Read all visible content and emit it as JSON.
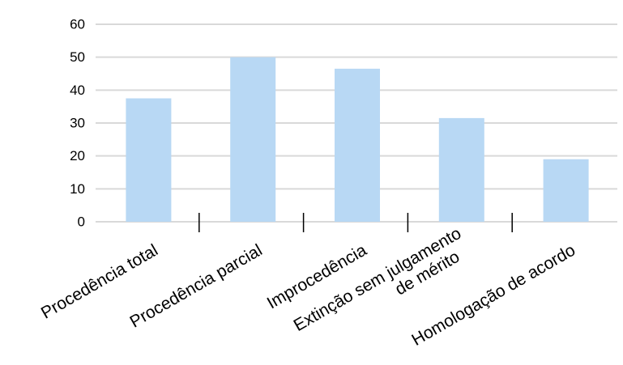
{
  "chart_data": {
    "type": "bar",
    "title": "",
    "xlabel": "",
    "ylabel": "",
    "ylim": [
      0,
      60
    ],
    "yticks": [
      0,
      10,
      20,
      30,
      40,
      50,
      60
    ],
    "grid": true,
    "categories": [
      [
        "Procedência total"
      ],
      [
        "Procedência parcial"
      ],
      [
        "Improcedência"
      ],
      [
        "Extinção sem julgamento",
        "de mérito"
      ],
      [
        "Homologação de acordo"
      ]
    ],
    "values": [
      37.5,
      50,
      46.5,
      31.5,
      19
    ],
    "colors": {
      "bar": "#b8d8f4",
      "grid": "#d9d9d9",
      "tick": "#000000"
    }
  }
}
